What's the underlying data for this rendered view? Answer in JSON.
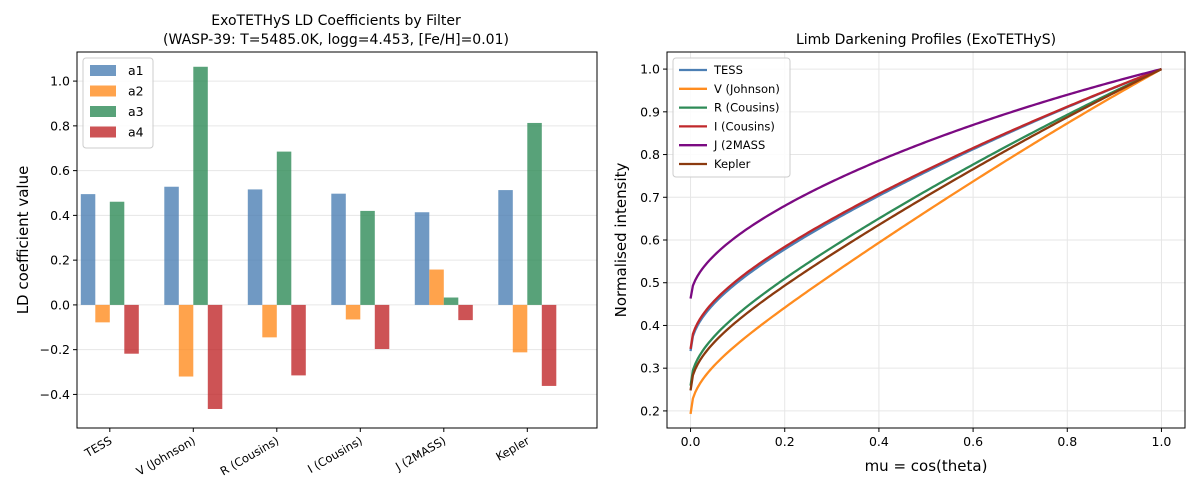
{
  "chart_data": [
    {
      "type": "bar",
      "title": "ExoTETHyS LD Coefficients by Filter",
      "subtitle": "(WASP-39: T=5485.0K, logg=4.453, [Fe/H]=0.01)",
      "xlabel": "",
      "ylabel": "LD coefficient value",
      "categories": [
        "TESS",
        "V (Johnson)",
        "R (Cousins)",
        "I (Cousins)",
        "J (2MASS)",
        "Kepler"
      ],
      "series": [
        {
          "name": "a1",
          "color": "#4c7fb4",
          "values": [
            0.495,
            0.528,
            0.516,
            0.497,
            0.414,
            0.513
          ]
        },
        {
          "name": "a2",
          "color": "#ff8c1f",
          "values": [
            -0.078,
            -0.32,
            -0.145,
            -0.065,
            0.158,
            -0.212
          ]
        },
        {
          "name": "a3",
          "color": "#2e8b57",
          "values": [
            0.461,
            1.064,
            0.685,
            0.42,
            0.033,
            0.813
          ]
        },
        {
          "name": "a4",
          "color": "#c0282b",
          "values": [
            -0.218,
            -0.465,
            -0.315,
            -0.197,
            -0.068,
            -0.362
          ]
        }
      ],
      "ylim": [
        -0.55,
        1.13
      ],
      "yticks": [
        -0.4,
        -0.2,
        0.0,
        0.2,
        0.4,
        0.6,
        0.8,
        1.0
      ],
      "ytick_labels": [
        "−0.4",
        "−0.2",
        "0.0",
        "0.2",
        "0.4",
        "0.6",
        "0.8",
        "1.0"
      ],
      "grid": "y",
      "legend_position": "top-left"
    },
    {
      "type": "line",
      "title": "Limb Darkening Profiles (ExoTETHyS)",
      "xlabel": "mu = cos(theta)",
      "ylabel": "Normalised intensity",
      "xlim": [
        -0.05,
        1.05
      ],
      "ylim": [
        0.16,
        1.04
      ],
      "xticks": [
        0.0,
        0.2,
        0.4,
        0.6,
        0.8,
        1.0
      ],
      "xtick_labels": [
        "0.0",
        "0.2",
        "0.4",
        "0.6",
        "0.8",
        "1.0"
      ],
      "yticks": [
        0.2,
        0.3,
        0.4,
        0.5,
        0.6,
        0.7,
        0.8,
        0.9,
        1.0
      ],
      "ytick_labels": [
        "0.2",
        "0.3",
        "0.4",
        "0.5",
        "0.6",
        "0.7",
        "0.8",
        "0.9",
        "1.0"
      ],
      "grid": "both",
      "legend_position": "top-left",
      "series": [
        {
          "name": "TESS",
          "color": "#4c7fb4",
          "coeffs": [
            0.495,
            -0.078,
            0.461,
            -0.218
          ]
        },
        {
          "name": "V (Johnson)",
          "color": "#ff8c1f",
          "coeffs": [
            0.528,
            -0.32,
            1.064,
            -0.465
          ]
        },
        {
          "name": "R (Cousins)",
          "color": "#2e8b57",
          "coeffs": [
            0.516,
            -0.145,
            0.685,
            -0.315
          ]
        },
        {
          "name": "I (Cousins)",
          "color": "#c0282b",
          "coeffs": [
            0.497,
            -0.065,
            0.42,
            -0.197
          ]
        },
        {
          "name": "J (2MASS",
          "color": "#7b0a82",
          "coeffs": [
            0.414,
            0.158,
            0.033,
            -0.068
          ]
        },
        {
          "name": "Kepler",
          "color": "#8b3a0f",
          "coeffs": [
            0.513,
            -0.212,
            0.813,
            -0.362
          ]
        }
      ]
    }
  ]
}
